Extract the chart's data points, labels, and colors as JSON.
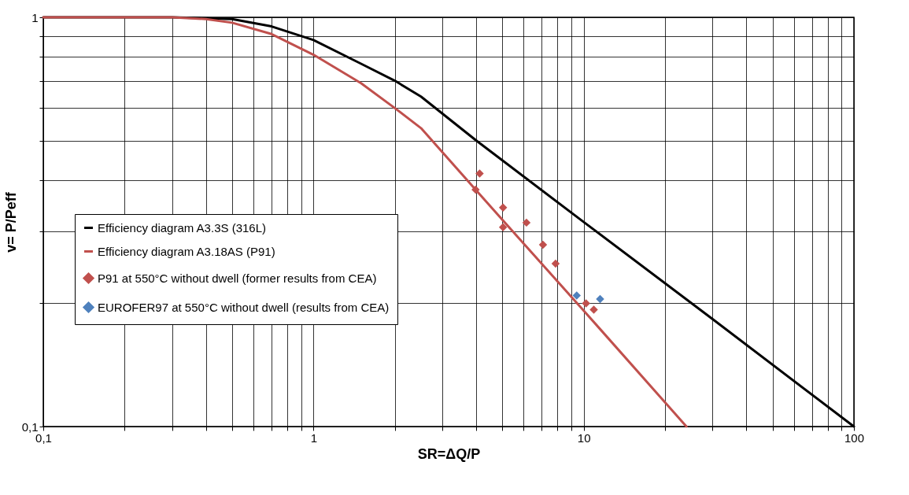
{
  "chart_data": {
    "type": "line",
    "xlabel": "SR=ΔQ/P",
    "ylabel": "v= P/Peff",
    "log": "xy",
    "grid": true,
    "legend": "left",
    "xlim": [
      0.1,
      100
    ],
    "ylim": [
      0.1,
      1
    ],
    "xticks": [
      {
        "value": 0.1,
        "label": "0,1"
      },
      {
        "value": 0.2,
        "label": null
      },
      {
        "value": 0.3,
        "label": null
      },
      {
        "value": 0.4,
        "label": null
      },
      {
        "value": 0.5,
        "label": null
      },
      {
        "value": 0.6,
        "label": null
      },
      {
        "value": 0.7,
        "label": null
      },
      {
        "value": 0.8,
        "label": null
      },
      {
        "value": 0.9,
        "label": null
      },
      1,
      {
        "value": 2,
        "label": null
      },
      {
        "value": 3,
        "label": null
      },
      {
        "value": 4,
        "label": null
      },
      {
        "value": 5,
        "label": null
      },
      {
        "value": 6,
        "label": null
      },
      {
        "value": 7,
        "label": null
      },
      {
        "value": 8,
        "label": null
      },
      {
        "value": 9,
        "label": null
      },
      10,
      {
        "value": 20,
        "label": null
      },
      {
        "value": 30,
        "label": null
      },
      {
        "value": 40,
        "label": null
      },
      {
        "value": 50,
        "label": null
      },
      {
        "value": 60,
        "label": null
      },
      {
        "value": 70,
        "label": null
      },
      {
        "value": 80,
        "label": null
      },
      {
        "value": 90,
        "label": null
      },
      100
    ],
    "yticks": [
      {
        "value": 0.1,
        "label": "0,1"
      },
      {
        "value": 0.2,
        "label": null
      },
      {
        "value": 0.3,
        "label": null
      },
      {
        "value": 0.4,
        "label": null
      },
      {
        "value": 0.5,
        "label": null
      },
      {
        "value": 0.6,
        "label": null
      },
      {
        "value": 0.7,
        "label": null
      },
      {
        "value": 0.8,
        "label": null
      },
      {
        "value": 0.9,
        "label": null
      },
      1
    ],
    "series": [
      {
        "name": "Efficiency diagram A3.3S (316L)",
        "marker": "none",
        "line_style": "solid",
        "color": "#000000",
        "x": [
          0.1,
          0.3,
          0.5,
          0.7,
          1,
          1.5,
          2,
          2.5,
          4,
          10,
          30,
          100
        ],
        "values": [
          1,
          1,
          0.99,
          0.95,
          0.88,
          0.77,
          0.7,
          0.64,
          0.5,
          0.316,
          0.183,
          0.1
        ]
      },
      {
        "name": "Efficiency diagram A3.18AS (P91)",
        "marker": "none",
        "line_style": "solid",
        "color": "#c0504d",
        "x": [
          0.1,
          0.3,
          0.4,
          0.5,
          0.7,
          1,
          1.5,
          2,
          2.5,
          5,
          10,
          24
        ],
        "values": [
          1,
          1,
          0.99,
          0.97,
          0.91,
          0.81,
          0.69,
          0.6,
          0.536,
          0.32,
          0.192,
          0.1
        ]
      },
      {
        "name": "P91 at 550°C without dwell (former results from CEA)",
        "type": "scatter",
        "marker": "diamond",
        "color": "#c0504d",
        "x": [
          4.12,
          3.98,
          5.03,
          5.03,
          6.14,
          7.07,
          7.87,
          10.2,
          10.9
        ],
        "values": [
          0.415,
          0.379,
          0.343,
          0.307,
          0.315,
          0.278,
          0.25,
          0.2,
          0.193
        ]
      },
      {
        "name": "EUROFER97 at 550°C without dwell (results from CEA)",
        "type": "scatter",
        "marker": "diamond",
        "color": "#4f81bd",
        "x": [
          9.42,
          11.5
        ],
        "values": [
          0.209,
          0.205
        ]
      }
    ]
  }
}
